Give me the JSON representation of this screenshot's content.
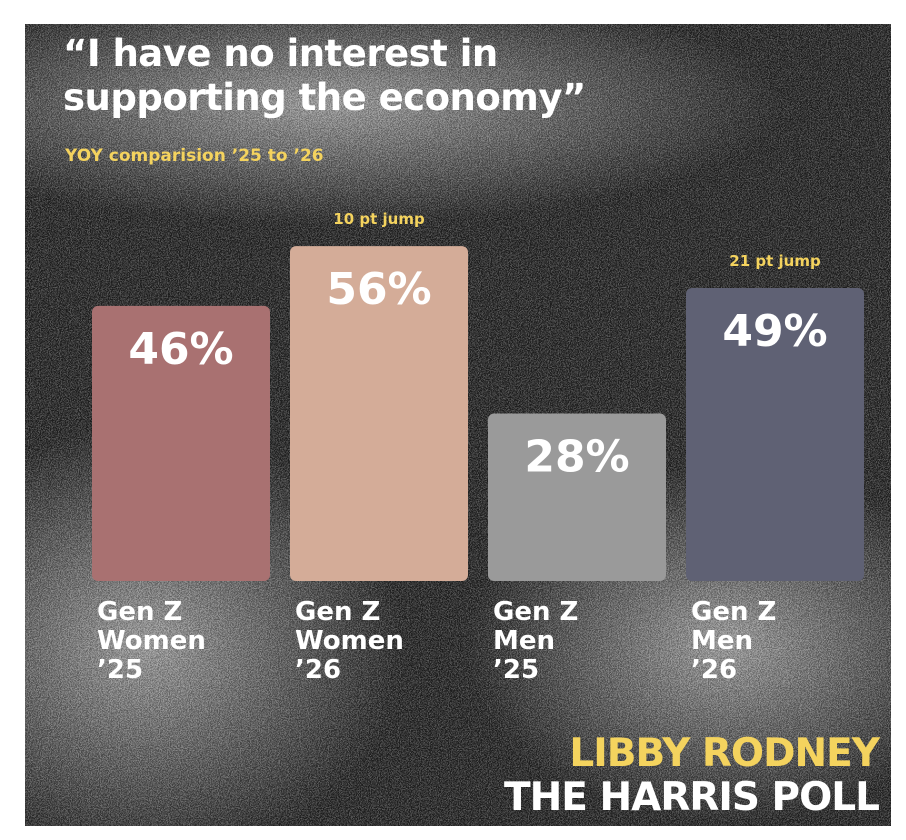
{
  "header": {
    "title_line1": "“I have no interest in",
    "title_line2": "supporting the economy”",
    "subtitle": "YOY comparision ’25 to ’26"
  },
  "branding": {
    "name": "LIBBY RODNEY",
    "org": "THE HARRIS POLL"
  },
  "chart_data": {
    "type": "bar",
    "unit": "%",
    "grid": false,
    "ylim": [
      0,
      60
    ],
    "categories": [
      [
        "Gen Z",
        "Women",
        "’25"
      ],
      [
        "Gen Z",
        "Women",
        "’26"
      ],
      [
        "Gen Z",
        "Men",
        "’25"
      ],
      [
        "Gen Z",
        "Men",
        "’26"
      ]
    ],
    "values": [
      46,
      56,
      28,
      49
    ],
    "value_labels": [
      "46%",
      "56%",
      "28%",
      "49%"
    ],
    "bar_colors": [
      "#a97171",
      "#d4ac98",
      "#9a9a9a",
      "#5f6174"
    ],
    "annotations": [
      "",
      "10 pt jump",
      "",
      "21 pt jump"
    ],
    "annotation_color": "#f4d35e"
  }
}
